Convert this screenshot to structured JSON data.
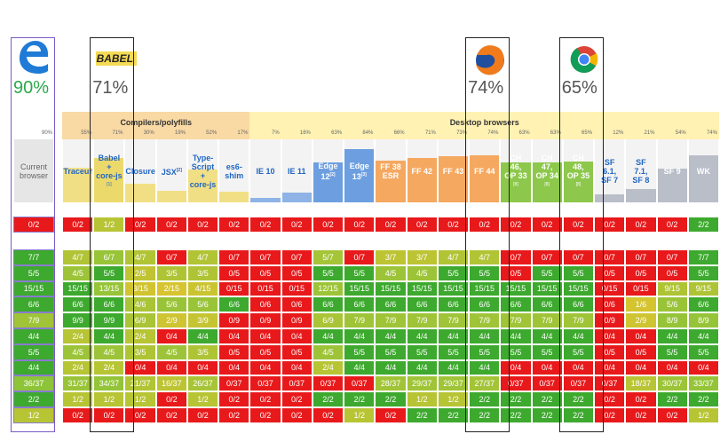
{
  "logos": [
    {
      "score": "90%"
    },
    {
      "text": "BABEL",
      "score": "71%"
    },
    {
      "score": "74%"
    },
    {
      "score": "65%"
    }
  ],
  "current": {
    "name": [
      "Current",
      "browser"
    ],
    "score": {
      "value": 90,
      "label": "90%"
    }
  },
  "groups": [
    {
      "label": "Compilers/polyfills",
      "color": "#f9d9a4",
      "columns": [
        {
          "name": [
            "Traceur"
          ],
          "score": {
            "value": 55,
            "label": "55%"
          },
          "color": "#f1df86"
        },
        {
          "name": [
            "Babel",
            "+",
            "core-js"
          ],
          "note": "[1]",
          "score": {
            "value": 71,
            "label": "71%"
          },
          "color": "#ecd96b"
        },
        {
          "name": [
            "Closure"
          ],
          "score": {
            "value": 30,
            "label": "30%"
          },
          "color": "#f1df86"
        },
        {
          "name": [
            "JSX"
          ],
          "sup": "[2]",
          "score": {
            "value": 19,
            "label": "19%"
          },
          "color": "#f1df86"
        },
        {
          "name": [
            "Type-",
            "Script",
            "+",
            "core-js"
          ],
          "score": {
            "value": 52,
            "label": "52%"
          },
          "color": "#f1df86"
        },
        {
          "name": [
            "es6-",
            "shim"
          ],
          "score": {
            "value": 17,
            "label": "17%"
          },
          "color": "#f1df86"
        }
      ]
    },
    {
      "label": "Desktop browsers",
      "color": "#fff2b3",
      "columns": [
        {
          "name": [
            "IE 10"
          ],
          "score": {
            "value": 7,
            "label": "7%"
          },
          "color": "#8fb3e6"
        },
        {
          "name": [
            "IE 11"
          ],
          "score": {
            "value": 16,
            "label": "16%"
          },
          "color": "#8fb3e6"
        },
        {
          "name": [
            "Edge",
            "12"
          ],
          "sup": "[2]",
          "score": {
            "value": 63,
            "label": "63%"
          },
          "color": "#6d9fe0"
        },
        {
          "name": [
            "Edge",
            "13"
          ],
          "sup": "[3]",
          "score": {
            "value": 84,
            "label": "84%"
          },
          "color": "#6d9fe0"
        },
        {
          "name": [
            "FF 38",
            "ESR"
          ],
          "score": {
            "value": 66,
            "label": "66%"
          },
          "color": "#f5a860"
        },
        {
          "name": [
            "FF 42"
          ],
          "score": {
            "value": 71,
            "label": "71%"
          },
          "color": "#f5a860"
        },
        {
          "name": [
            "FF 43"
          ],
          "score": {
            "value": 73,
            "label": "73%"
          },
          "color": "#f5a860"
        },
        {
          "name": [
            "FF 44"
          ],
          "score": {
            "value": 74,
            "label": "74%"
          },
          "color": "#f5a860"
        },
        {
          "name": [
            "CH",
            "46,",
            "OP 33"
          ],
          "note": "[8]",
          "score": {
            "value": 63,
            "label": "63%"
          },
          "color": "#8dc84c"
        },
        {
          "name": [
            "CH",
            "47,",
            "OP 34"
          ],
          "note": "[8]",
          "score": {
            "value": 63,
            "label": "63%"
          },
          "color": "#8dc84c"
        },
        {
          "name": [
            "CH",
            "48,",
            "OP 35"
          ],
          "note": "[8]",
          "score": {
            "value": 65,
            "label": "65%"
          },
          "color": "#8dc84c"
        },
        {
          "name": [
            "SF",
            "6.1,",
            "SF 7"
          ],
          "score": {
            "value": 12,
            "label": "12%"
          },
          "color": "#b9bec9"
        },
        {
          "name": [
            "SF",
            "7.1,",
            "SF 8"
          ],
          "score": {
            "value": 21,
            "label": "21%"
          },
          "color": "#b9bec9"
        },
        {
          "name": [
            "SF 9"
          ],
          "score": {
            "value": 54,
            "label": "54%"
          },
          "color": "#b9bec9"
        },
        {
          "name": [
            "WK"
          ],
          "score": {
            "value": 74,
            "label": "74%"
          },
          "color": "#b9bec9"
        }
      ]
    }
  ],
  "rows": [
    [
      "0/2",
      "0/2",
      "1/2",
      "0/2",
      "0/2",
      "0/2",
      "0/2",
      "0/2",
      "0/2",
      "0/2",
      "0/2",
      "0/2",
      "0/2",
      "0/2",
      "0/2",
      "0/2",
      "0/2",
      "0/2",
      "0/2",
      "0/2",
      "0/2",
      "2/2"
    ],
    [
      "7/7",
      "4/7",
      "6/7",
      "4/7",
      "0/7",
      "4/7",
      "0/7",
      "0/7",
      "0/7",
      "5/7",
      "0/7",
      "3/7",
      "3/7",
      "4/7",
      "4/7",
      "0/7",
      "0/7",
      "0/7",
      "0/7",
      "0/7",
      "0/7",
      "7/7"
    ],
    [
      "5/5",
      "4/5",
      "5/5",
      "2/5",
      "3/5",
      "3/5",
      "0/5",
      "0/5",
      "0/5",
      "5/5",
      "5/5",
      "4/5",
      "4/5",
      "5/5",
      "5/5",
      "0/5",
      "5/5",
      "5/5",
      "0/5",
      "0/5",
      "0/5",
      "5/5"
    ],
    [
      "15/15",
      "15/15",
      "13/15",
      "3/15",
      "2/15",
      "4/15",
      "0/15",
      "0/15",
      "0/15",
      "12/15",
      "15/15",
      "15/15",
      "15/15",
      "15/15",
      "15/15",
      "15/15",
      "15/15",
      "15/15",
      "0/15",
      "0/15",
      "9/15",
      "9/15"
    ],
    [
      "6/6",
      "6/6",
      "6/6",
      "4/6",
      "5/6",
      "5/6",
      "6/6",
      "0/6",
      "0/6",
      "6/6",
      "6/6",
      "6/6",
      "6/6",
      "6/6",
      "6/6",
      "6/6",
      "6/6",
      "6/6",
      "0/6",
      "1/6",
      "5/6",
      "6/6"
    ],
    [
      "7/9",
      "9/9",
      "9/9",
      "6/9",
      "2/9",
      "3/9",
      "0/9",
      "0/9",
      "0/9",
      "6/9",
      "7/9",
      "7/9",
      "7/9",
      "7/9",
      "7/9",
      "7/9",
      "7/9",
      "7/9",
      "0/9",
      "2/9",
      "8/9",
      "8/9"
    ],
    [
      "4/4",
      "2/4",
      "4/4",
      "2/4",
      "0/4",
      "4/4",
      "0/4",
      "0/4",
      "0/4",
      "4/4",
      "4/4",
      "4/4",
      "4/4",
      "4/4",
      "4/4",
      "4/4",
      "4/4",
      "4/4",
      "0/4",
      "0/4",
      "4/4",
      "4/4"
    ],
    [
      "5/5",
      "4/5",
      "4/5",
      "3/5",
      "4/5",
      "3/5",
      "0/5",
      "0/5",
      "0/5",
      "4/5",
      "5/5",
      "5/5",
      "5/5",
      "5/5",
      "5/5",
      "5/5",
      "5/5",
      "5/5",
      "0/5",
      "0/5",
      "5/5",
      "5/5"
    ],
    [
      "4/4",
      "2/4",
      "2/4",
      "0/4",
      "0/4",
      "0/4",
      "0/4",
      "0/4",
      "0/4",
      "2/4",
      "4/4",
      "4/4",
      "4/4",
      "4/4",
      "4/4",
      "0/4",
      "0/4",
      "0/4",
      "0/4",
      "0/4",
      "0/4",
      "0/4"
    ],
    [
      "36/37",
      "31/37",
      "34/37",
      "21/37",
      "16/37",
      "26/37",
      "0/37",
      "0/37",
      "0/37",
      "0/37",
      "0/37",
      "28/37",
      "29/37",
      "29/37",
      "27/37",
      "0/37",
      "0/37",
      "0/37",
      "0/37",
      "18/37",
      "30/37",
      "33/37"
    ],
    [
      "2/2",
      "1/2",
      "1/2",
      "1/2",
      "0/2",
      "1/2",
      "0/2",
      "0/2",
      "0/2",
      "2/2",
      "2/2",
      "2/2",
      "1/2",
      "1/2",
      "2/2",
      "2/2",
      "2/2",
      "2/2",
      "0/2",
      "0/2",
      "2/2",
      "2/2"
    ],
    [
      "1/2",
      "0/2",
      "0/2",
      "0/2",
      "0/2",
      "0/2",
      "0/2",
      "0/2",
      "0/2",
      "0/2",
      "1/2",
      "0/2",
      "2/2",
      "2/2",
      "2/2",
      "2/2",
      "2/2",
      "2/2",
      "0/2",
      "0/2",
      "0/2",
      "1/2"
    ]
  ]
}
